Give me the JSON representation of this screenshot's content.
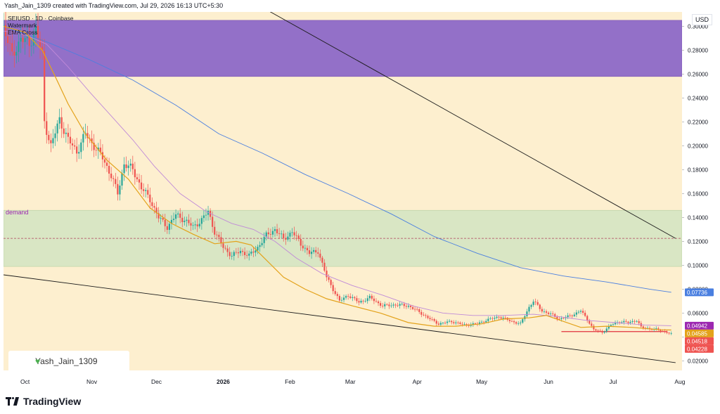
{
  "header": {
    "created_line": "Yash_Jain_1309 created with TradingView.com, Jul 29, 2026 16:13 UTC+5:30",
    "symbol_line": "SEIUSD · 1D · Coinbase",
    "indicator_1": "Watermark",
    "indicator_2": "EMA Cross"
  },
  "currency_badge": "USD",
  "zone_label": "demand",
  "watermark_text": "Yash_Jain_1309",
  "logo_text": "TradingView",
  "colors": {
    "background": "#fdefcf",
    "supply_zone": "#9370c8",
    "demand_zone": "#d9e6c4",
    "ema_fast": "#e3a21a",
    "ema_mid": "#c08ad8",
    "ema_slow": "#4a7fe0",
    "candle_up": "#26a69a",
    "candle_down": "#ef5350",
    "support_line": "#e0323c",
    "trend_line": "#1a1a1a"
  },
  "price_labels": [
    {
      "text": "0.07736",
      "value": 0.07736,
      "color": "#4a7fe0"
    },
    {
      "text": "0.04942",
      "value": 0.04942,
      "color": "#9c27b0"
    },
    {
      "text": "0.04585",
      "value": 0.04585,
      "color": "#e3a21a"
    },
    {
      "text": "0.04518",
      "value": 0.04518,
      "color": "#ef5350"
    },
    {
      "text": "0.04228",
      "value": 0.04228,
      "color": "#ef5350"
    }
  ],
  "chart_data": {
    "type": "candlestick",
    "title": "SEIUSD · 1D · Coinbase",
    "y_ticks": [
      0.02,
      0.04,
      0.06,
      0.08,
      0.1,
      0.12,
      0.14,
      0.16,
      0.18,
      0.2,
      0.22,
      0.24,
      0.26,
      0.28,
      0.3
    ],
    "y_tick_labels": [
      "0.02000",
      "0.04000",
      "0.06000",
      "0.08000",
      "0.10000",
      "0.12000",
      "0.14000",
      "0.16000",
      "0.18000",
      "0.20000",
      "0.22000",
      "0.24000",
      "0.26000",
      "0.28000",
      "0.30000"
    ],
    "ylim": [
      0.012,
      0.312
    ],
    "x_ticks": [
      "Oct",
      "Nov",
      "Dec",
      "2026",
      "Feb",
      "Mar",
      "Apr",
      "May",
      "Jun",
      "Jul",
      "Aug"
    ],
    "x_tick_days": [
      0,
      31,
      61,
      92,
      123,
      151,
      182,
      212,
      243,
      273,
      304
    ],
    "xlim": [
      -10,
      305
    ],
    "zones": [
      {
        "name": "supply",
        "low": 0.258,
        "high": 0.305
      },
      {
        "name": "demand",
        "low": 0.099,
        "high": 0.146
      }
    ],
    "midline": 0.1225,
    "support_level": {
      "value": 0.0445,
      "from_day": 249,
      "to_day": 298
    },
    "trend_lines": [
      {
        "from": [
          -10,
          0.092
        ],
        "to": [
          302,
          0.0185
        ]
      },
      {
        "from": [
          108,
          0.318
        ],
        "to": [
          302,
          0.1225
        ]
      }
    ],
    "ema_fast": [
      [
        -10,
        0.3
      ],
      [
        0,
        0.295
      ],
      [
        8,
        0.28
      ],
      [
        14,
        0.258
      ],
      [
        20,
        0.235
      ],
      [
        28,
        0.21
      ],
      [
        38,
        0.188
      ],
      [
        48,
        0.172
      ],
      [
        58,
        0.148
      ],
      [
        68,
        0.135
      ],
      [
        78,
        0.126
      ],
      [
        88,
        0.118
      ],
      [
        98,
        0.12
      ],
      [
        105,
        0.117
      ],
      [
        110,
        0.108
      ],
      [
        120,
        0.09
      ],
      [
        130,
        0.08
      ],
      [
        140,
        0.072
      ],
      [
        152,
        0.066
      ],
      [
        165,
        0.06
      ],
      [
        178,
        0.052
      ],
      [
        190,
        0.049
      ],
      [
        200,
        0.049
      ],
      [
        212,
        0.051
      ],
      [
        222,
        0.055
      ],
      [
        234,
        0.056
      ],
      [
        242,
        0.058
      ],
      [
        250,
        0.053
      ],
      [
        258,
        0.048
      ],
      [
        270,
        0.049
      ],
      [
        282,
        0.048
      ],
      [
        295,
        0.046
      ],
      [
        300,
        0.0458
      ]
    ],
    "ema_mid": [
      [
        -10,
        0.296
      ],
      [
        0,
        0.293
      ],
      [
        10,
        0.285
      ],
      [
        20,
        0.266
      ],
      [
        30,
        0.245
      ],
      [
        40,
        0.225
      ],
      [
        50,
        0.205
      ],
      [
        60,
        0.183
      ],
      [
        72,
        0.16
      ],
      [
        84,
        0.145
      ],
      [
        96,
        0.135
      ],
      [
        106,
        0.13
      ],
      [
        116,
        0.12
      ],
      [
        126,
        0.106
      ],
      [
        138,
        0.093
      ],
      [
        152,
        0.083
      ],
      [
        166,
        0.075
      ],
      [
        180,
        0.066
      ],
      [
        194,
        0.06
      ],
      [
        208,
        0.058
      ],
      [
        222,
        0.058
      ],
      [
        236,
        0.059
      ],
      [
        248,
        0.057
      ],
      [
        260,
        0.054
      ],
      [
        274,
        0.052
      ],
      [
        288,
        0.05
      ],
      [
        300,
        0.0494
      ]
    ],
    "ema_slow": [
      [
        -10,
        0.3
      ],
      [
        10,
        0.287
      ],
      [
        30,
        0.272
      ],
      [
        50,
        0.255
      ],
      [
        70,
        0.234
      ],
      [
        90,
        0.21
      ],
      [
        110,
        0.194
      ],
      [
        130,
        0.176
      ],
      [
        150,
        0.16
      ],
      [
        170,
        0.143
      ],
      [
        190,
        0.124
      ],
      [
        210,
        0.11
      ],
      [
        230,
        0.098
      ],
      [
        250,
        0.091
      ],
      [
        270,
        0.086
      ],
      [
        290,
        0.08
      ],
      [
        300,
        0.0774
      ]
    ],
    "price_path": [
      [
        -10,
        0.3
      ],
      [
        -6,
        0.275
      ],
      [
        -2,
        0.29
      ],
      [
        2,
        0.285
      ],
      [
        5,
        0.298
      ],
      [
        8,
        0.275
      ],
      [
        9,
        0.22
      ],
      [
        12,
        0.2
      ],
      [
        16,
        0.222
      ],
      [
        20,
        0.205
      ],
      [
        24,
        0.195
      ],
      [
        28,
        0.21
      ],
      [
        32,
        0.2
      ],
      [
        36,
        0.19
      ],
      [
        40,
        0.175
      ],
      [
        43,
        0.16
      ],
      [
        46,
        0.185
      ],
      [
        50,
        0.18
      ],
      [
        54,
        0.165
      ],
      [
        58,
        0.155
      ],
      [
        62,
        0.14
      ],
      [
        66,
        0.132
      ],
      [
        70,
        0.142
      ],
      [
        74,
        0.138
      ],
      [
        78,
        0.132
      ],
      [
        82,
        0.138
      ],
      [
        85,
        0.145
      ],
      [
        88,
        0.128
      ],
      [
        92,
        0.115
      ],
      [
        96,
        0.108
      ],
      [
        100,
        0.112
      ],
      [
        104,
        0.108
      ],
      [
        108,
        0.115
      ],
      [
        112,
        0.125
      ],
      [
        116,
        0.13
      ],
      [
        120,
        0.122
      ],
      [
        124,
        0.128
      ],
      [
        128,
        0.118
      ],
      [
        132,
        0.11
      ],
      [
        136,
        0.112
      ],
      [
        140,
        0.09
      ],
      [
        143,
        0.08
      ],
      [
        146,
        0.07
      ],
      [
        150,
        0.075
      ],
      [
        155,
        0.069
      ],
      [
        160,
        0.073
      ],
      [
        166,
        0.066
      ],
      [
        172,
        0.067
      ],
      [
        178,
        0.066
      ],
      [
        182,
        0.062
      ],
      [
        188,
        0.055
      ],
      [
        192,
        0.051
      ],
      [
        198,
        0.053
      ],
      [
        204,
        0.05
      ],
      [
        210,
        0.051
      ],
      [
        214,
        0.054
      ],
      [
        220,
        0.057
      ],
      [
        226,
        0.053
      ],
      [
        230,
        0.051
      ],
      [
        234,
        0.065
      ],
      [
        236,
        0.07
      ],
      [
        240,
        0.062
      ],
      [
        244,
        0.059
      ],
      [
        248,
        0.055
      ],
      [
        252,
        0.057
      ],
      [
        256,
        0.06
      ],
      [
        258,
        0.062
      ],
      [
        262,
        0.052
      ],
      [
        264,
        0.046
      ],
      [
        268,
        0.044
      ],
      [
        272,
        0.05
      ],
      [
        276,
        0.053
      ],
      [
        280,
        0.052
      ],
      [
        284,
        0.054
      ],
      [
        286,
        0.048
      ],
      [
        290,
        0.047
      ],
      [
        294,
        0.046
      ],
      [
        298,
        0.044
      ],
      [
        300,
        0.0423
      ]
    ]
  }
}
